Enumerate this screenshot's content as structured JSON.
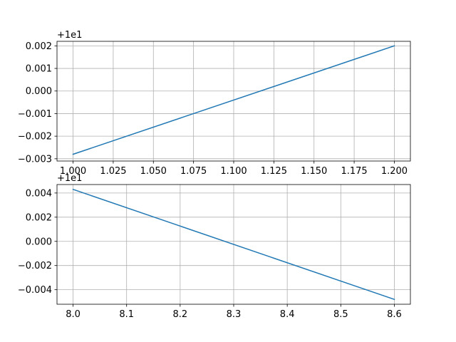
{
  "chart_data": [
    {
      "type": "line",
      "x": [
        1.0,
        1.2
      ],
      "series": [
        {
          "values": [
            -0.0028,
            0.002
          ],
          "color": "#1f77b4"
        }
      ],
      "offset_label": "+1e1",
      "xlim": [
        0.99,
        1.21
      ],
      "ylim": [
        -0.0031,
        0.0022
      ],
      "xticks": [
        1.0,
        1.025,
        1.05,
        1.075,
        1.1,
        1.125,
        1.15,
        1.175,
        1.2
      ],
      "xtick_labels": [
        "1.000",
        "1.025",
        "1.050",
        "1.075",
        "1.100",
        "1.125",
        "1.150",
        "1.175",
        "1.200"
      ],
      "yticks": [
        -0.003,
        -0.002,
        -0.001,
        0.0,
        0.001,
        0.002
      ],
      "ytick_labels": [
        "−0.003",
        "−0.002",
        "−0.001",
        "0.000",
        "0.001",
        "0.002"
      ],
      "grid": true,
      "title": "",
      "xlabel": "",
      "ylabel": ""
    },
    {
      "type": "line",
      "x": [
        8.0,
        8.6
      ],
      "series": [
        {
          "values": [
            0.0043,
            -0.0048
          ],
          "color": "#1f77b4"
        }
      ],
      "offset_label": "+1e1",
      "xlim": [
        7.97,
        8.63
      ],
      "ylim": [
        -0.0052,
        0.0047
      ],
      "xticks": [
        8.0,
        8.1,
        8.2,
        8.3,
        8.4,
        8.5,
        8.6
      ],
      "xtick_labels": [
        "8.0",
        "8.1",
        "8.2",
        "8.3",
        "8.4",
        "8.5",
        "8.6"
      ],
      "yticks": [
        -0.004,
        -0.002,
        0.0,
        0.002,
        0.004
      ],
      "ytick_labels": [
        "−0.004",
        "−0.002",
        "0.000",
        "0.002",
        "0.004"
      ],
      "grid": true,
      "title": "",
      "xlabel": "",
      "ylabel": ""
    }
  ]
}
